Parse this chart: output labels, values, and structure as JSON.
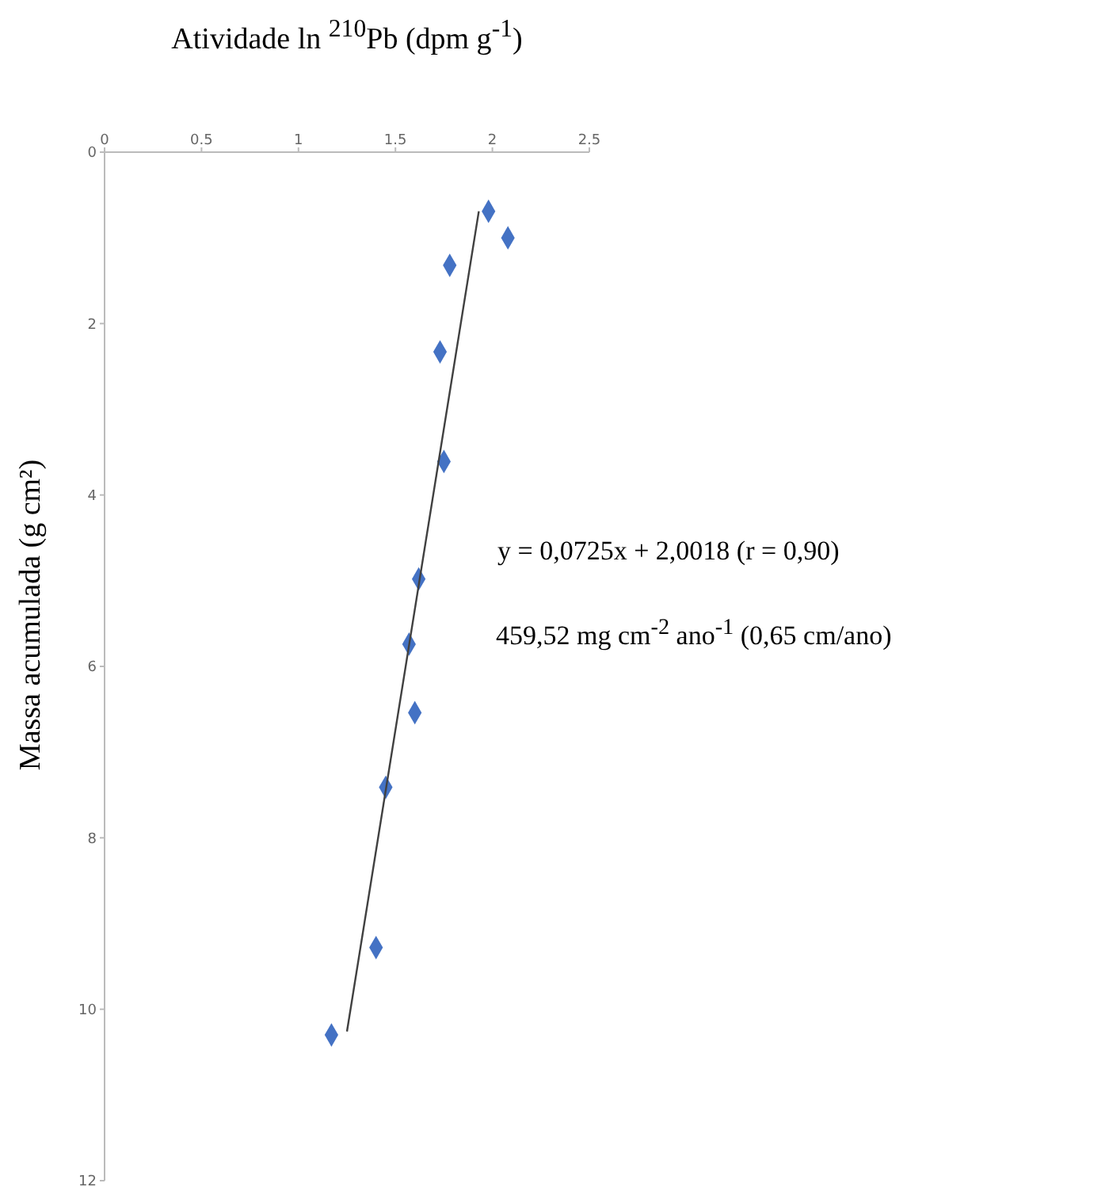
{
  "chart_data": {
    "type": "scatter",
    "xlabel": "Atividade ln $^{210}$Pb (dpm g$^{-1}$)",
    "ylabel": "Massa acumulada (g cm²)",
    "xlim": [
      0,
      2.5
    ],
    "xticks": [
      0,
      {
        "value": 0.5,
        "label": "0.5"
      },
      1,
      {
        "value": 1.5,
        "label": "1.5"
      },
      2,
      {
        "value": 2.5,
        "label": "2.5"
      }
    ],
    "ylim": [
      12,
      0
    ],
    "yticks": [
      0,
      2,
      4,
      6,
      8,
      10,
      12
    ],
    "grid": false,
    "legend": false,
    "marker": "diamond",
    "series": [
      {
        "color": "#4472c4",
        "x": [
          1.98,
          2.08,
          1.78,
          1.73,
          1.75,
          1.62,
          1.57,
          1.6,
          1.45,
          1.4,
          1.17
        ],
        "values": [
          0.69,
          1.0,
          1.32,
          2.33,
          3.61,
          4.98,
          5.74,
          6.54,
          7.41,
          9.28,
          10.3
        ]
      },
      {
        "type": "line",
        "color": "#404040",
        "marker": "none",
        "line_style": "solid",
        "x": [
          1.93,
          1.25
        ],
        "values": [
          0.69,
          10.26
        ]
      }
    ],
    "annotations": [
      "y = 0,0725x + 2,0018 (r = 0,90)",
      "459,52 mg cm$^{-2}$ ano$^{-1}$ (0,65 cm/ano)"
    ]
  }
}
